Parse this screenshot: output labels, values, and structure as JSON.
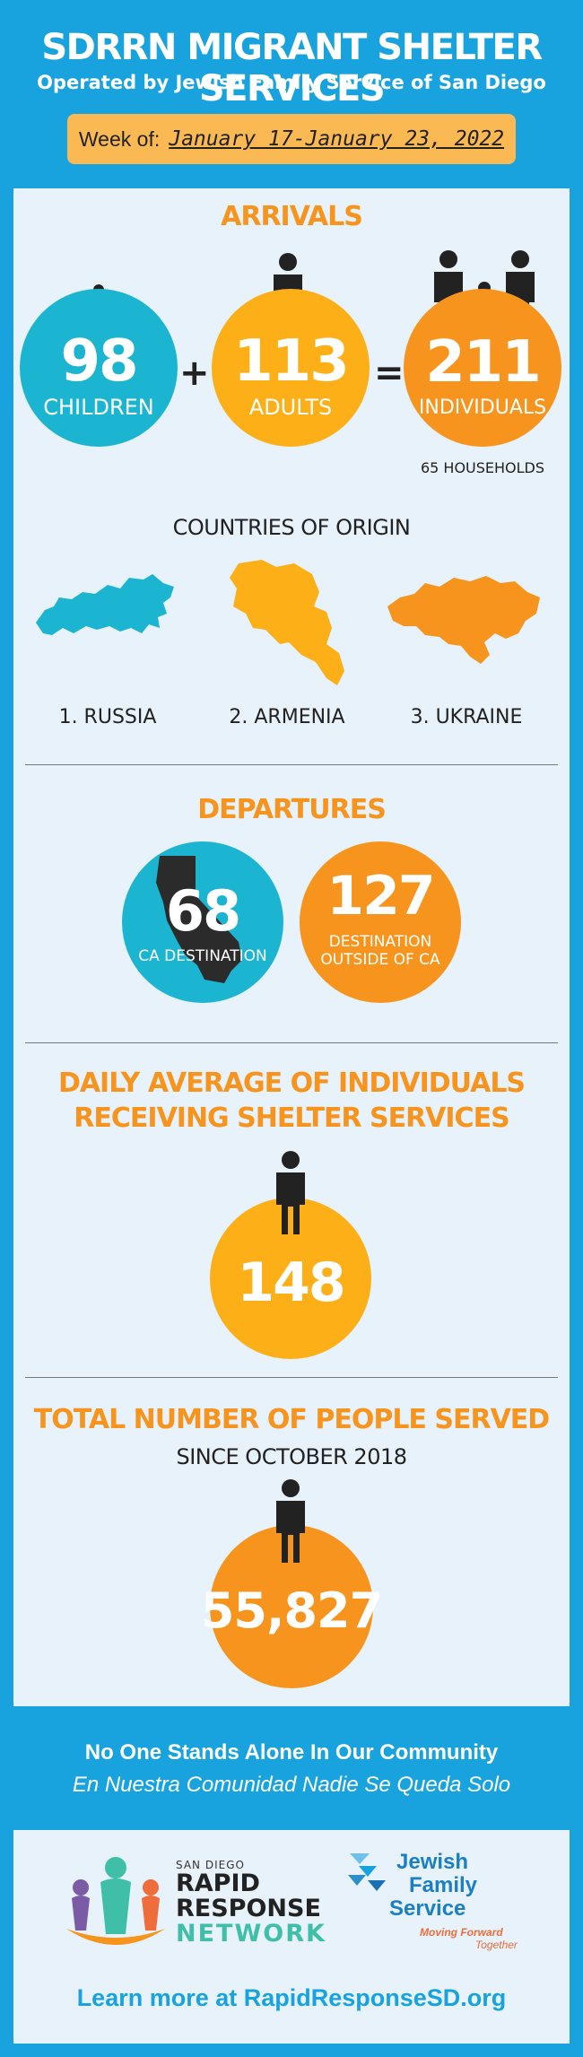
{
  "header": {
    "title": "SDRRN MIGRANT SHELTER SERVICES",
    "subtitle": "Operated by Jewish Family Service of San Diego",
    "week_label": "Week of:",
    "week_value": "January 17-January 23, 2022"
  },
  "arrivals": {
    "title": "ARRIVALS",
    "children": {
      "value": "98",
      "label": "CHILDREN"
    },
    "adults": {
      "value": "113",
      "label": "ADULTS"
    },
    "individuals": {
      "value": "211",
      "label": "INDIVIDUALS"
    },
    "plus": "+",
    "equals": "=",
    "households": "65 HOUSEHOLDS"
  },
  "countries": {
    "title": "COUNTRIES OF ORIGIN",
    "items": [
      "1. RUSSIA",
      "2. ARMENIA",
      "3. UKRAINE"
    ]
  },
  "departures": {
    "title": "DEPARTURES",
    "ca": {
      "value": "68",
      "label": "CA DESTINATION"
    },
    "outside": {
      "value": "127",
      "label_line1": "DESTINATION",
      "label_line2": "OUTSIDE OF CA"
    }
  },
  "daily": {
    "title_line1": "DAILY AVERAGE OF INDIVIDUALS",
    "title_line2": "RECEIVING SHELTER SERVICES",
    "value": "148"
  },
  "total": {
    "title": "TOTAL NUMBER OF PEOPLE SERVED",
    "subtitle": "SINCE OCTOBER 2018",
    "value": "55,827"
  },
  "footer": {
    "tagline_en": "No One Stands Alone In Our Community",
    "tagline_es": "En Nuestra Comunidad Nadie Se Queda Solo",
    "rrn_small": "SAN DIEGO",
    "rrn_line1": "RAPID",
    "rrn_line2": "RESPONSE",
    "rrn_line3": "NETWORK",
    "jfs_line1": "Jewish",
    "jfs_line2": "Family",
    "jfs_line3": "Service",
    "jfs_tag1": "Moving Forward",
    "jfs_tag2": "Together",
    "learn_more": "Learn more at RapidResponseSD.org"
  },
  "colors": {
    "blue": "#19a3de",
    "cyan_circle": "#1cb5d1",
    "yellow_circle": "#fcaf17",
    "orange_circle": "#f7941d",
    "orange_text": "#f7941d",
    "panel": "#e7f2fa",
    "week_box": "#fbb954"
  }
}
